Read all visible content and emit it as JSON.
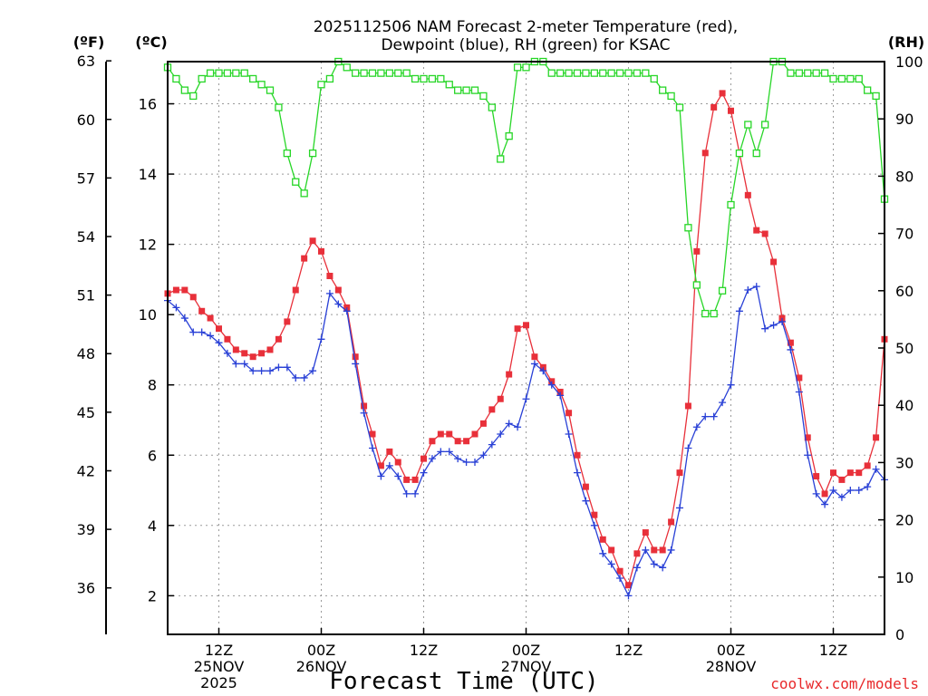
{
  "chart_data": {
    "type": "line",
    "title_line1": "2025112506 NAM Forecast 2-meter Temperature (red),",
    "title_line2": "Dewpoint (blue), RH (green) for KSAC",
    "xlabel": "Forecast Time (UTC)",
    "credit": "coolwx.com/models",
    "units": {
      "fahrenheit": "(ºF)",
      "celsius": "(ºC)",
      "rh": "(RH)"
    },
    "x_range_hours": [
      0,
      84
    ],
    "x_ticks": [
      {
        "hour": 6,
        "line1": "12Z",
        "line2": "25NOV",
        "line3": "2025"
      },
      {
        "hour": 18,
        "line1": "00Z",
        "line2": "26NOV",
        "line3": ""
      },
      {
        "hour": 30,
        "line1": "12Z",
        "line2": "",
        "line3": ""
      },
      {
        "hour": 42,
        "line1": "00Z",
        "line2": "27NOV",
        "line3": ""
      },
      {
        "hour": 54,
        "line1": "12Z",
        "line2": "",
        "line3": ""
      },
      {
        "hour": 66,
        "line1": "00Z",
        "line2": "28NOV",
        "line3": ""
      },
      {
        "hour": 78,
        "line1": "12Z",
        "line2": "",
        "line3": ""
      }
    ],
    "celsius_axis": {
      "min": 0.9,
      "max": 17.2,
      "ticks": [
        2,
        4,
        6,
        8,
        10,
        12,
        14,
        16
      ]
    },
    "fahrenheit_axis": {
      "ticks": [
        36,
        39,
        42,
        45,
        48,
        51,
        54,
        57,
        60,
        63
      ]
    },
    "rh_axis": {
      "min": 0,
      "max": 100,
      "ticks": [
        0,
        10,
        20,
        30,
        40,
        50,
        60,
        70,
        80,
        90,
        100
      ]
    },
    "series": [
      {
        "name": "2-meter Temperature",
        "unit": "C",
        "color": "#e8303a",
        "marker": "filled-square",
        "values": [
          10.6,
          10.7,
          10.7,
          10.5,
          10.1,
          9.9,
          9.6,
          9.3,
          9.0,
          8.9,
          8.8,
          8.9,
          9.0,
          9.3,
          9.8,
          10.7,
          11.6,
          12.1,
          11.8,
          11.1,
          10.7,
          10.2,
          8.8,
          7.4,
          6.6,
          5.7,
          6.1,
          5.8,
          5.3,
          5.3,
          5.9,
          6.4,
          6.6,
          6.6,
          6.4,
          6.4,
          6.6,
          6.9,
          7.3,
          7.6,
          8.3,
          9.6,
          9.7,
          8.8,
          8.5,
          8.1,
          7.8,
          7.2,
          6.0,
          5.1,
          4.3,
          3.6,
          3.3,
          2.7,
          2.3,
          3.2,
          3.8,
          3.3,
          3.3,
          4.1,
          5.5,
          7.4,
          11.8,
          14.6,
          15.9,
          16.3,
          15.8,
          14.6,
          13.4,
          12.4,
          12.3,
          11.5,
          9.9,
          9.2,
          8.2,
          6.5,
          5.4,
          4.9,
          5.5,
          5.3,
          5.5,
          5.5,
          5.7,
          6.5,
          9.3
        ]
      },
      {
        "name": "Dewpoint",
        "unit": "C",
        "color": "#2940d6",
        "marker": "plus",
        "values": [
          10.4,
          10.2,
          9.9,
          9.5,
          9.5,
          9.4,
          9.2,
          8.9,
          8.6,
          8.6,
          8.4,
          8.4,
          8.4,
          8.5,
          8.5,
          8.2,
          8.2,
          8.4,
          9.3,
          10.6,
          10.3,
          10.1,
          8.6,
          7.2,
          6.2,
          5.4,
          5.7,
          5.4,
          4.9,
          4.9,
          5.5,
          5.9,
          6.1,
          6.1,
          5.9,
          5.8,
          5.8,
          6.0,
          6.3,
          6.6,
          6.9,
          6.8,
          7.6,
          8.6,
          8.4,
          8.0,
          7.7,
          6.6,
          5.5,
          4.7,
          4.0,
          3.2,
          2.9,
          2.5,
          2.0,
          2.8,
          3.3,
          2.9,
          2.8,
          3.3,
          4.5,
          6.2,
          6.8,
          7.1,
          7.1,
          7.5,
          8.0,
          10.1,
          10.7,
          10.8,
          9.6,
          9.7,
          9.8,
          9.0,
          7.8,
          6.0,
          4.9,
          4.6,
          5.0,
          4.8,
          5.0,
          5.0,
          5.1,
          5.6,
          5.3
        ]
      },
      {
        "name": "RH",
        "unit": "%",
        "color": "#27d627",
        "marker": "open-square",
        "values": [
          99,
          97,
          95,
          94,
          97,
          98,
          98,
          98,
          98,
          98,
          97,
          96,
          95,
          92,
          84,
          79,
          77,
          84,
          96,
          97,
          100,
          99,
          98,
          98,
          98,
          98,
          98,
          98,
          98,
          97,
          97,
          97,
          97,
          96,
          95,
          95,
          95,
          94,
          92,
          83,
          87,
          99,
          99,
          100,
          100,
          98,
          98,
          98,
          98,
          98,
          98,
          98,
          98,
          98,
          98,
          98,
          98,
          97,
          95,
          94,
          92,
          71,
          61,
          56,
          56,
          60,
          75,
          84,
          89,
          84,
          89,
          100,
          100,
          98,
          98,
          98,
          98,
          98,
          97,
          97,
          97,
          97,
          95,
          94,
          76
        ]
      }
    ]
  }
}
